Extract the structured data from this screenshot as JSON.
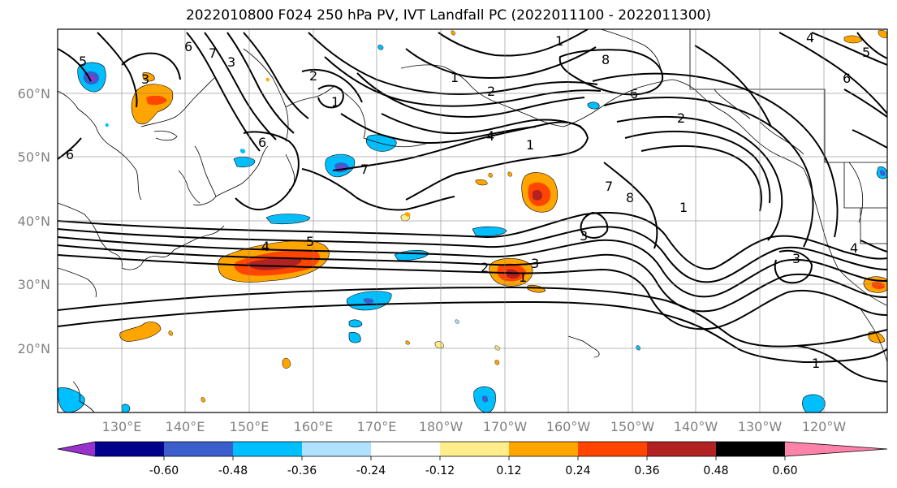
{
  "title": "2022010800 F024 250 hPa PV, IVT Landfall PC (2022011100 - 2022011300)",
  "lat_labels": [
    "60°N",
    "50°N",
    "40°N",
    "30°N",
    "20°N"
  ],
  "lon_labels": [
    "130°E",
    "140°E",
    "150°E",
    "160°E",
    "170°E",
    "180°W",
    "170°W",
    "160°W",
    "150°W",
    "140°W",
    "130°W",
    "120°W"
  ],
  "colorbar": {
    "colors": [
      "#9932cc",
      "#00008b",
      "#3a5fcd",
      "#00bfff",
      "#b0e2ff",
      "#ffffff",
      "#ffec8b",
      "#ffa500",
      "#ff4500",
      "#b22222",
      "#ff82ab"
    ],
    "tick_labels": [
      "-0.60",
      "-0.48",
      "-0.36",
      "-0.24",
      "-0.12",
      "0.12",
      "0.24",
      "0.36",
      "0.48",
      "0.60"
    ]
  },
  "contour_labels": [
    "5",
    "6",
    "7",
    "3",
    "2",
    "1",
    "6",
    "1",
    "2",
    "4",
    "1",
    "8",
    "6",
    "7",
    "7",
    "8",
    "1",
    "2",
    "1",
    "4",
    "5",
    "2",
    "3",
    "1",
    "3",
    "3",
    "1",
    "4",
    "6",
    "5",
    "4",
    "6",
    "3"
  ]
}
